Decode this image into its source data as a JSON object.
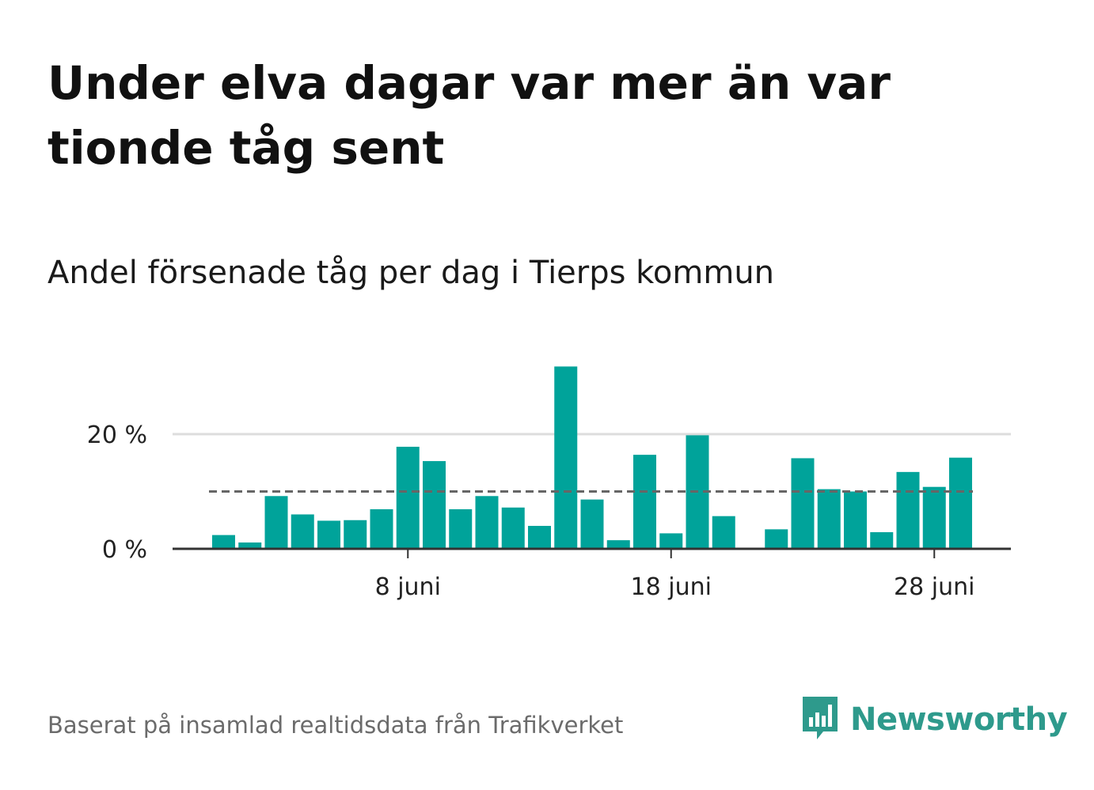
{
  "title": "Under elva dagar var mer än var tionde tåg sent",
  "subtitle": "Andel försenade tåg per dag i Tierps kommun",
  "footer": "Baserat på insamlad realtidsdata från Trafikverket",
  "brand": {
    "name": "Newsworthy",
    "icon": "newsworthy-chart-bubble-icon",
    "color": "#2e9a8c"
  },
  "colors": {
    "bar": "#00a39a",
    "reference_line": "#666666",
    "grid": "#dddddd",
    "axis": "#333333"
  },
  "chart_data": {
    "type": "bar",
    "x_unit": "day of June",
    "x": [
      1,
      2,
      3,
      4,
      5,
      6,
      7,
      8,
      9,
      10,
      11,
      12,
      13,
      14,
      15,
      16,
      17,
      18,
      19,
      20,
      21,
      22,
      23,
      24,
      25,
      26,
      27,
      28,
      29
    ],
    "values": [
      2.4,
      1.1,
      9.2,
      6.0,
      4.9,
      5.0,
      6.9,
      17.8,
      15.3,
      6.9,
      9.2,
      7.2,
      4.0,
      31.8,
      8.6,
      1.5,
      16.4,
      2.7,
      19.8,
      5.7,
      null,
      3.4,
      15.8,
      10.4,
      10.0,
      2.9,
      13.4,
      10.8,
      15.9
    ],
    "reference_line": 10,
    "y_ticks": [
      {
        "value": 0,
        "label": "0 %"
      },
      {
        "value": 20,
        "label": "20 %"
      }
    ],
    "x_ticks": [
      {
        "value": 8,
        "label": "8 juni"
      },
      {
        "value": 18,
        "label": "18 juni"
      },
      {
        "value": 28,
        "label": "28 juni"
      }
    ],
    "ylim": [
      0,
      32
    ],
    "grid": true
  }
}
